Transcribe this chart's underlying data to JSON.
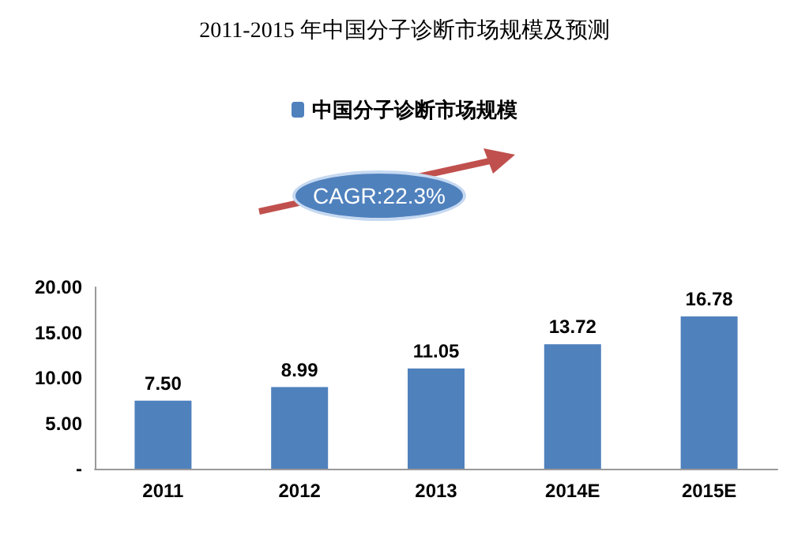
{
  "chart_data": {
    "type": "bar",
    "title": "2011-2015 年中国分子诊断市场规模及预测",
    "categories": [
      "2011",
      "2012",
      "2013",
      "2014E",
      "2015E"
    ],
    "series": [
      {
        "name": "中国分子诊断市场规模",
        "color": "#4f81bd",
        "values": [
          7.5,
          8.99,
          11.05,
          13.72,
          16.78
        ],
        "value_labels": [
          "7.50",
          "8.99",
          "11.05",
          "13.72",
          "16.78"
        ]
      }
    ],
    "ylim": [
      0,
      20
    ],
    "yticks": [
      {
        "value": 0,
        "label": "-"
      },
      {
        "value": 5,
        "label": "5.00"
      },
      {
        "value": 10,
        "label": "10.00"
      },
      {
        "value": 15,
        "label": "15.00"
      },
      {
        "value": 20,
        "label": "20.00"
      }
    ],
    "annotations": [
      "CAGR:22.3%"
    ],
    "grid": false,
    "legend": "top"
  }
}
